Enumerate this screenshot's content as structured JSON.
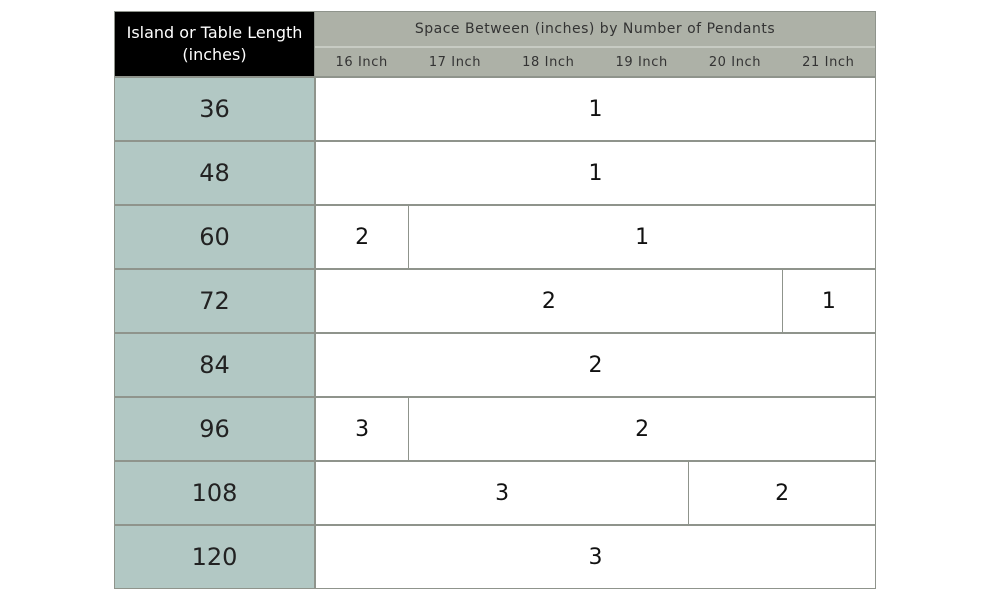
{
  "table": {
    "corner_label": "Island or Table Length (inches)",
    "title": "Space Between (inches) by Number of Pendants",
    "columns": [
      "16 Inch",
      "17 Inch",
      "18 Inch",
      "19 Inch",
      "20 Inch",
      "21 Inch"
    ],
    "rows": [
      {
        "length": "36",
        "cells": [
          {
            "value": "1",
            "span": 6
          }
        ]
      },
      {
        "length": "48",
        "cells": [
          {
            "value": "1",
            "span": 6
          }
        ]
      },
      {
        "length": "60",
        "cells": [
          {
            "value": "2",
            "span": 1
          },
          {
            "value": "1",
            "span": 5
          }
        ]
      },
      {
        "length": "72",
        "cells": [
          {
            "value": "2",
            "span": 5
          },
          {
            "value": "1",
            "span": 1
          }
        ]
      },
      {
        "length": "84",
        "cells": [
          {
            "value": "2",
            "span": 6
          }
        ]
      },
      {
        "length": "96",
        "cells": [
          {
            "value": "3",
            "span": 1
          },
          {
            "value": "2",
            "span": 5
          }
        ]
      },
      {
        "length": "108",
        "cells": [
          {
            "value": "3",
            "span": 4
          },
          {
            "value": "2",
            "span": 2
          }
        ]
      },
      {
        "length": "120",
        "cells": [
          {
            "value": "3",
            "span": 6
          }
        ]
      }
    ]
  },
  "colors": {
    "corner_bg": "#000000",
    "header_bg": "#adb1a7",
    "row_header_bg": "#b2c8c4",
    "border": "#8f948c"
  }
}
